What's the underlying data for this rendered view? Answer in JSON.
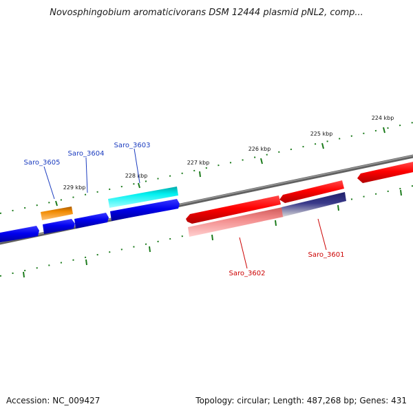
{
  "title": "Novosphingobium aromaticivorans DSM 12444 plasmid pNL2, comp...",
  "footer": {
    "accession": "Accession: NC_009427",
    "summary": "Topology: circular; Length: 487,268 bp; Genes: 431"
  },
  "ticks": [
    "224 kbp",
    "225 kbp",
    "226 kbp",
    "227 kbp",
    "228 kbp",
    "229 kbp"
  ],
  "genes": [
    {
      "id": "Saro_3605",
      "color": "#1a3bbf"
    },
    {
      "id": "Saro_3604",
      "color": "#1a3bbf"
    },
    {
      "id": "Saro_3603",
      "color": "#1a3bbf"
    },
    {
      "id": "Saro_3602",
      "color": "#cc0000"
    },
    {
      "id": "Saro_3601",
      "color": "#cc0000"
    }
  ],
  "colors": {
    "forward_cds": "#0000ee",
    "reverse_cds": "#ff0000",
    "orange_feature": "#f08a00",
    "cyan_feature": "#00e8e8",
    "pink_feature": "#f28a8a",
    "navy_feature": "#3a3a8a",
    "backbone": "#808080",
    "tick": "#1a7a1a"
  }
}
